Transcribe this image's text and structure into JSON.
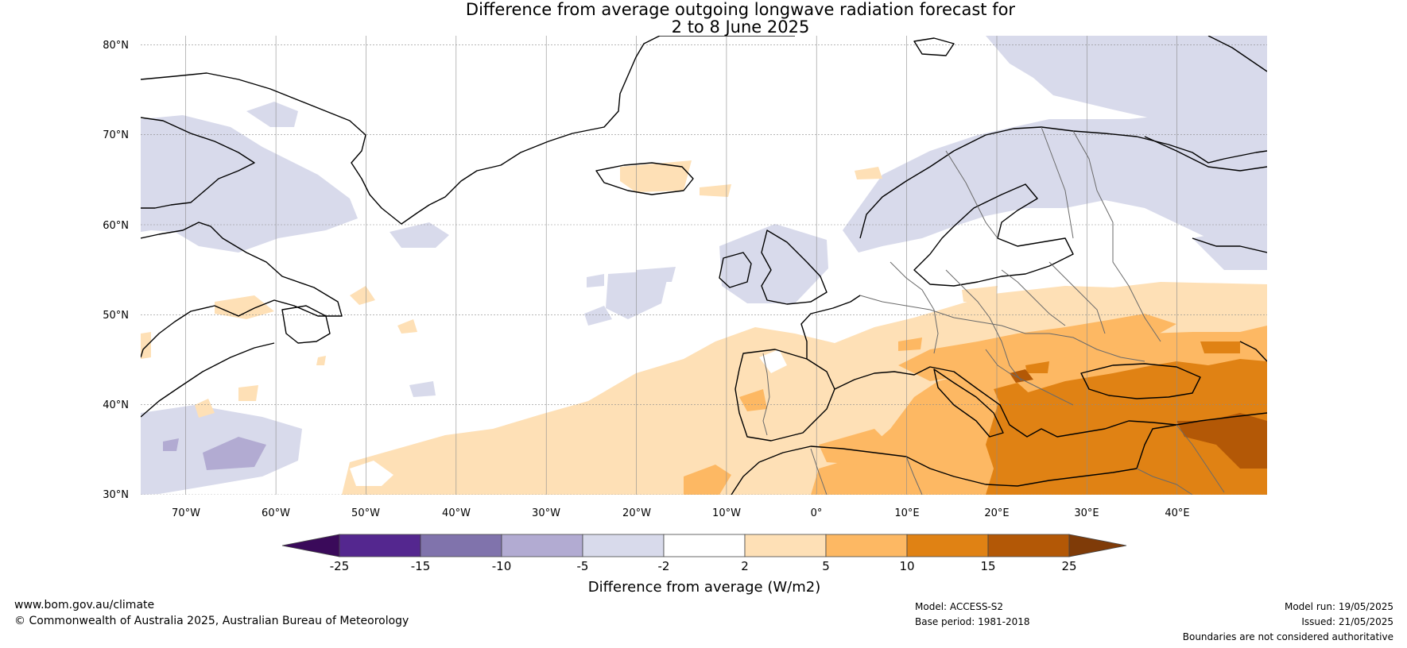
{
  "title": {
    "line1": "Difference from average outgoing longwave radiation forecast for",
    "line2": "2 to 8 June 2025"
  },
  "map": {
    "region": "North Atlantic and Europe",
    "lon_range": [
      -75,
      50
    ],
    "lat_range": [
      30,
      81
    ],
    "lat_ticks": [
      "80°N",
      "70°N",
      "60°N",
      "50°N",
      "40°N",
      "30°N"
    ],
    "lon_ticks": [
      "70°W",
      "60°W",
      "50°W",
      "40°W",
      "30°W",
      "20°W",
      "10°W",
      "0°",
      "10°E",
      "20°E",
      "30°E",
      "40°E"
    ],
    "grid": true
  },
  "colorbar": {
    "label": "Difference from average (W/m2)",
    "tick_labels": [
      "-25",
      "-15",
      "-10",
      "-5",
      "-2",
      "2",
      "5",
      "10",
      "15",
      "25"
    ],
    "colors": [
      "#3a0a5a",
      "#54278f",
      "#8073ac",
      "#b2abd2",
      "#d8daeb",
      "#ffffff",
      "#fee0b6",
      "#fdb863",
      "#e08214",
      "#b35806",
      "#7f3b08"
    ]
  },
  "footer": {
    "website": "www.bom.gov.au/climate",
    "copyright": "© Commonwealth of Australia 2025, Australian Bureau of Meteorology",
    "model": "Model: ACCESS-S2",
    "base_period": "Base period: 1981-2018",
    "model_run": "Model run: 19/05/2025",
    "issued": "Issued: 21/05/2025",
    "disclaimer": "Boundaries are not considered authoritative"
  }
}
